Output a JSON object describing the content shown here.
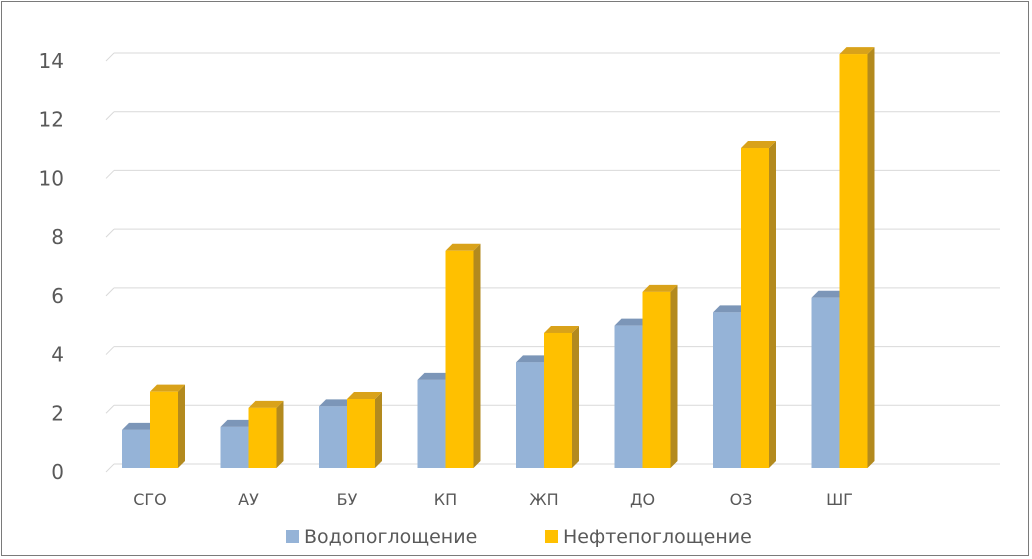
{
  "chart_data": {
    "type": "bar",
    "categories": [
      "СГО",
      "АУ",
      "БУ",
      "КП",
      "ЖП",
      "ДО",
      "ОЗ",
      "ШГ"
    ],
    "series": [
      {
        "name": "Водопоглощение",
        "values": [
          1.3,
          1.4,
          2.1,
          3.0,
          3.6,
          4.85,
          5.3,
          5.8
        ]
      },
      {
        "name": "Нефтепоглощение",
        "values": [
          2.6,
          2.05,
          2.35,
          7.4,
          4.6,
          6.0,
          10.9,
          14.1
        ]
      }
    ],
    "yticks": [
      0,
      2,
      4,
      6,
      8,
      10,
      12,
      14
    ],
    "ylim": [
      0,
      14
    ],
    "grid": true,
    "legend_position": "bottom",
    "colors": {
      "series_front": [
        "#95b3d7",
        "#ffc000"
      ],
      "series_side": [
        "#6b83a3",
        "#b38a1e"
      ],
      "series_top": [
        "#7c96b8",
        "#d9a21a"
      ]
    }
  }
}
